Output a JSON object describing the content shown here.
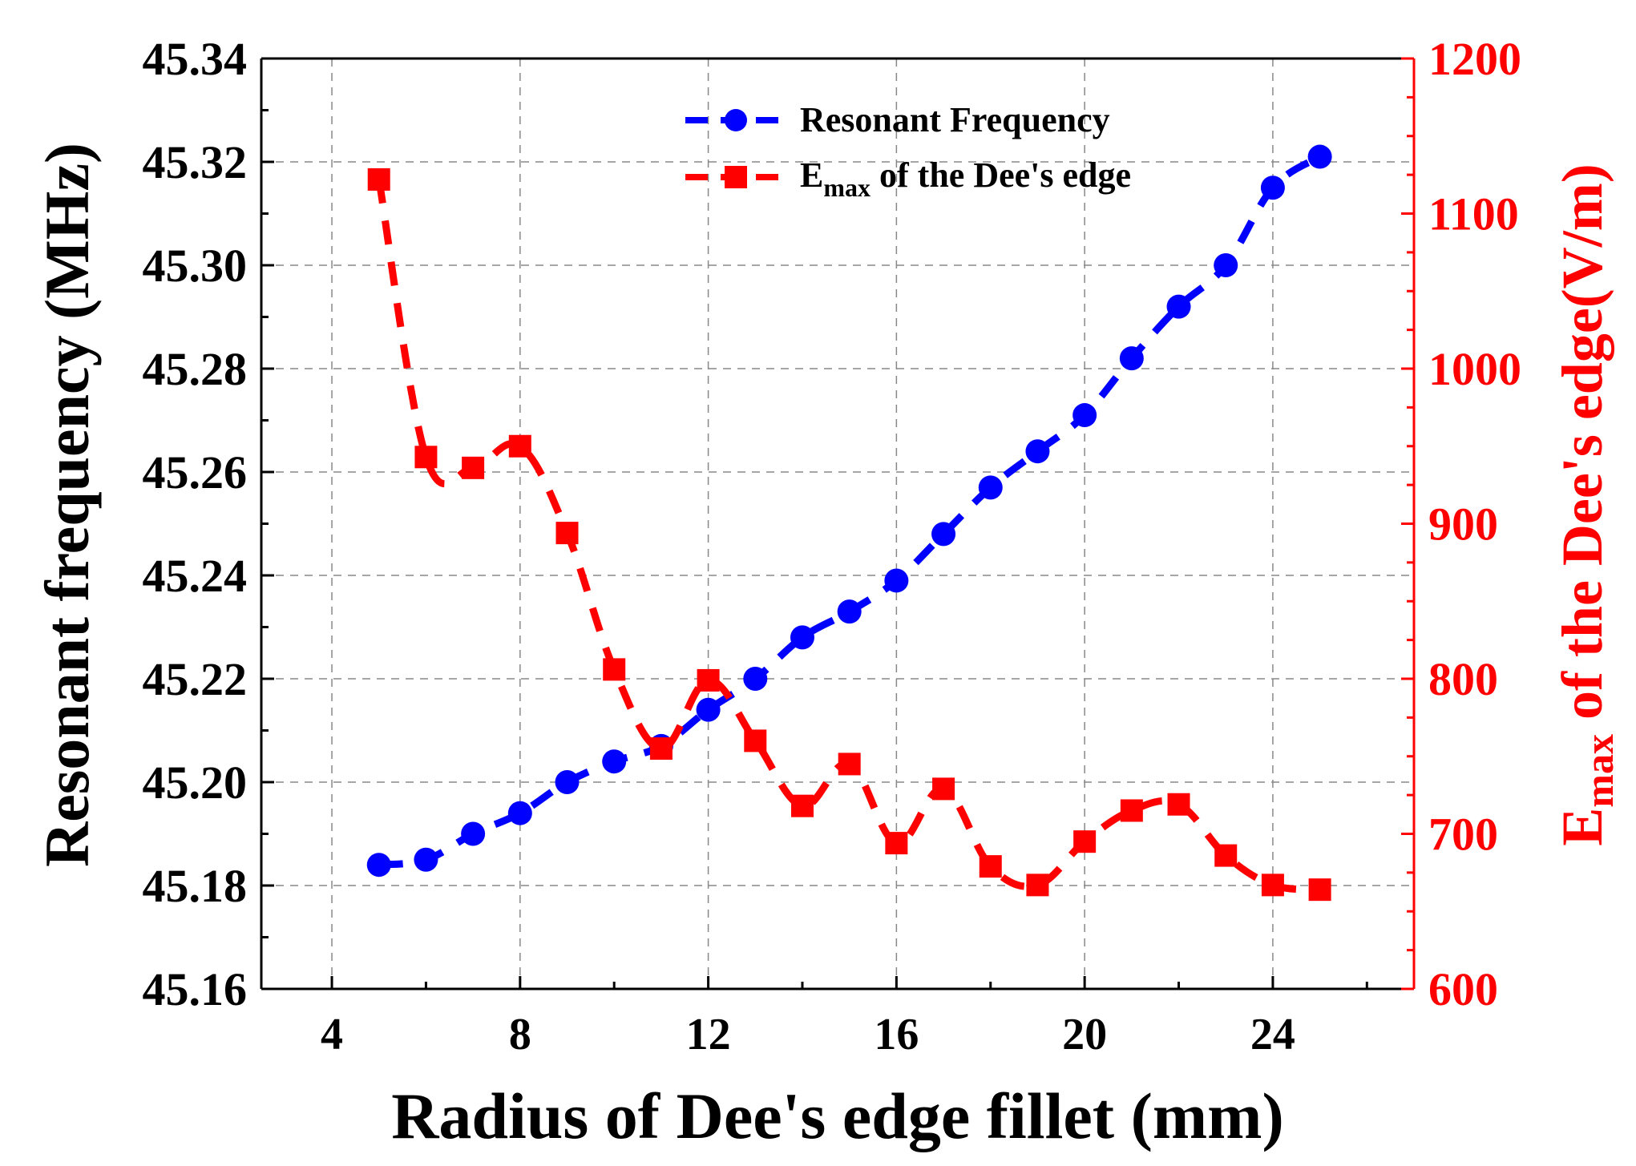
{
  "chart_data": {
    "type": "line",
    "title": "",
    "xlabel": "Radius of Dee's edge fillet (mm)",
    "ylabel_left": "Resonant frequency (MHz)",
    "ylabel_right": {
      "prefix": "E",
      "sub": "max",
      "suffix": " of the Dee's edge(V/m)"
    },
    "xlim": [
      2.5,
      27
    ],
    "ylim_left": [
      45.16,
      45.34
    ],
    "ylim_right": [
      600,
      1200
    ],
    "x_ticks": [
      4,
      8,
      12,
      16,
      20,
      24
    ],
    "x_tick_labels": [
      "4",
      "8",
      "12",
      "16",
      "20",
      "24"
    ],
    "y_left_ticks": [
      45.16,
      45.18,
      45.2,
      45.22,
      45.24,
      45.26,
      45.28,
      45.3,
      45.32,
      45.34
    ],
    "y_left_tick_labels": [
      "45.16",
      "45.18",
      "45.20",
      "45.22",
      "45.24",
      "45.26",
      "45.28",
      "45.30",
      "45.32",
      "45.34"
    ],
    "y_right_ticks": [
      600,
      700,
      800,
      900,
      1000,
      1100,
      1200
    ],
    "y_right_tick_labels": [
      "600",
      "700",
      "800",
      "900",
      "1000",
      "1100",
      "1200"
    ],
    "grid": true,
    "legend_position": "top-center",
    "legend": [
      {
        "label": "Resonant Frequency"
      },
      {
        "label_prefix": "E",
        "label_sub": "max",
        "label_suffix": " of the Dee's edge"
      }
    ],
    "series": [
      {
        "name": "Resonant Frequency",
        "axis": "left",
        "color": "#0000ff",
        "marker": "circle",
        "x": [
          5,
          6,
          7,
          8,
          9,
          10,
          11,
          12,
          13,
          14,
          15,
          16,
          17,
          18,
          19,
          20,
          21,
          22,
          23,
          24,
          25
        ],
        "values": [
          45.184,
          45.185,
          45.19,
          45.194,
          45.2,
          45.204,
          45.207,
          45.214,
          45.22,
          45.228,
          45.233,
          45.239,
          45.248,
          45.257,
          45.264,
          45.271,
          45.282,
          45.292,
          45.3,
          45.315,
          45.321
        ]
      },
      {
        "name": "Emax of the Dee's edge",
        "axis": "right",
        "color": "#ff0000",
        "marker": "square",
        "x": [
          5,
          6,
          7,
          8,
          9,
          10,
          11,
          12,
          13,
          14,
          15,
          16,
          17,
          18,
          19,
          20,
          21,
          22,
          23,
          24,
          25
        ],
        "values": [
          1122,
          943,
          936,
          950,
          894,
          806,
          755,
          799,
          760,
          718,
          745,
          694,
          729,
          679,
          667,
          695,
          715,
          719,
          686,
          667,
          664
        ]
      }
    ]
  }
}
